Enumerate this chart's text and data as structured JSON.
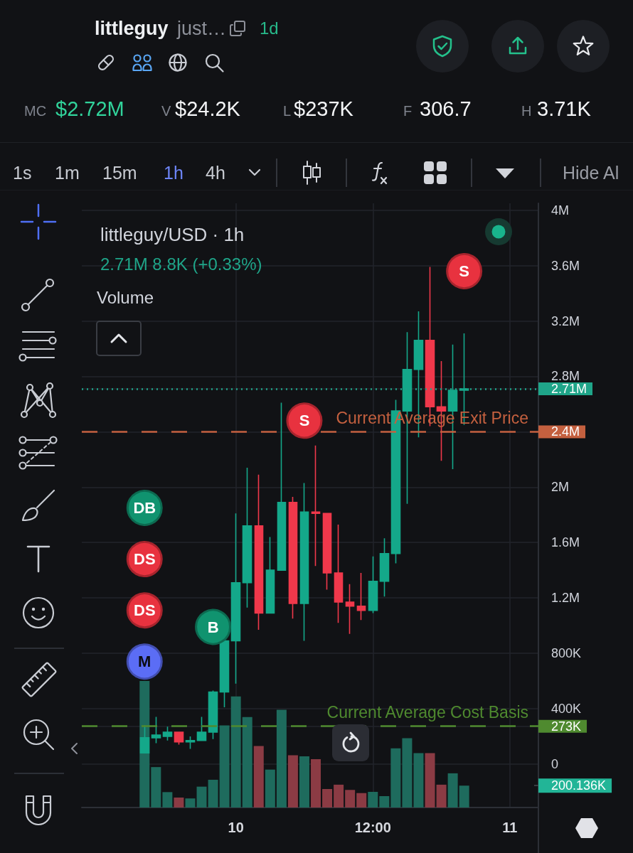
{
  "chart_data": {
    "type": "candlestick",
    "title": "littleguy/USD · 1h",
    "subtitle": "2.71M 8.8K (+0.33%)",
    "categories": [
      null,
      null,
      null,
      null,
      null,
      null,
      null,
      null,
      null,
      null,
      null,
      null,
      null,
      "10",
      null,
      null,
      null,
      null,
      null,
      null,
      null,
      null,
      null,
      null,
      null,
      "12:00",
      null,
      null,
      null,
      null,
      null,
      null,
      null,
      null,
      null,
      null,
      null,
      "11",
      null,
      null
    ],
    "ohlc": [
      null,
      null,
      null,
      null,
      null,
      [
        80000,
        280000,
        80000,
        190000
      ],
      [
        190000,
        340000,
        150000,
        210000
      ],
      [
        200000,
        270000,
        170000,
        230000
      ],
      [
        230000,
        230000,
        140000,
        160000
      ],
      [
        160000,
        200000,
        110000,
        170000
      ],
      [
        170000,
        340000,
        170000,
        230000
      ],
      [
        230000,
        530000,
        180000,
        520000
      ],
      [
        520000,
        890000,
        410000,
        890000
      ],
      [
        890000,
        1810000,
        580000,
        1310000
      ],
      [
        1310000,
        2140000,
        1130000,
        1720000
      ],
      [
        1720000,
        2090000,
        970000,
        1090000
      ],
      [
        1090000,
        1640000,
        1090000,
        1400000
      ],
      [
        1400000,
        2610000,
        1400000,
        1890000
      ],
      [
        1890000,
        1930000,
        1050000,
        1160000
      ],
      [
        1160000,
        2030000,
        890000,
        1820000
      ],
      [
        1820000,
        2300000,
        1430000,
        1810000
      ],
      [
        1810000,
        1810000,
        1260000,
        1380000
      ],
      [
        1380000,
        1730000,
        1020000,
        1170000
      ],
      [
        1170000,
        1300000,
        940000,
        1140000
      ],
      [
        1140000,
        1380000,
        1040000,
        1110000
      ],
      [
        1110000,
        1500000,
        1090000,
        1320000
      ],
      [
        1320000,
        1630000,
        1210000,
        1520000
      ],
      [
        1520000,
        2630000,
        1450000,
        2550000
      ],
      [
        2550000,
        3120000,
        1880000,
        2850000
      ],
      [
        2850000,
        3270000,
        2360000,
        3060000
      ],
      [
        3060000,
        3590000,
        2440000,
        2580000
      ],
      [
        2580000,
        2910000,
        2190000,
        2550000
      ],
      [
        2550000,
        3030000,
        2130000,
        2700000
      ],
      [
        2700000,
        3110000,
        2450000,
        2710000
      ],
      null,
      null,
      null,
      null,
      null,
      null
    ],
    "colors": [
      null,
      null,
      null,
      null,
      null,
      "#14a88a",
      "#14a88a",
      "#14a88a",
      "#f0384b",
      "#14a88a",
      "#14a88a",
      "#14a88a",
      "#14a88a",
      "#14a88a",
      "#14a88a",
      "#f0384b",
      "#14a88a",
      "#14a88a",
      "#f0384b",
      "#14a88a",
      "#f0384b",
      "#f0384b",
      "#f0384b",
      "#f0384b",
      "#f0384b",
      "#14a88a",
      "#14a88a",
      "#14a88a",
      "#14a88a",
      "#14a88a",
      "#f0384b",
      "#f0384b",
      "#14a88a",
      "#14a88a",
      null,
      null,
      null,
      null,
      null,
      null
    ],
    "series": [
      {
        "type": "bar",
        "axis": "y2",
        "values": [
          null,
          null,
          null,
          null,
          null,
          1158000,
          370000,
          141000,
          91000,
          83000,
          191000,
          254000,
          752000,
          1017000,
          828000,
          563000,
          347000,
          895000,
          478000,
          469000,
          443000,
          169000,
          209000,
          161000,
          132000,
          143000,
          104000,
          541000,
          634000,
          497000,
          497000,
          209000,
          313000,
          200136,
          null,
          null,
          null,
          null,
          null,
          null
        ],
        "colors": [
          null,
          null,
          null,
          null,
          null,
          "#1e6b5d",
          "#1e6b5d",
          "#1e6b5d",
          "#8b3b44",
          "#1e6b5d",
          "#1e6b5d",
          "#1e6b5d",
          "#1e6b5d",
          "#1e6b5d",
          "#1e6b5d",
          "#8b3b44",
          "#1e6b5d",
          "#1e6b5d",
          "#8b3b44",
          "#1e6b5d",
          "#8b3b44",
          "#8b3b44",
          "#8b3b44",
          "#8b3b44",
          "#8b3b44",
          "#1e6b5d",
          "#1e6b5d",
          "#1e6b5d",
          "#1e6b5d",
          "#1e6b5d",
          "#8b3b44",
          "#8b3b44",
          "#1e6b5d",
          "#1e6b5d",
          null,
          null,
          null,
          null,
          null,
          null
        ]
      },
      {
        "type": "scatter",
        "color": "#10936f",
        "values": [
          null,
          null,
          null,
          null,
          null,
          1850000,
          null,
          null,
          null,
          null,
          null,
          990000,
          null,
          null,
          null,
          null,
          null,
          null,
          null,
          null,
          null,
          null,
          null,
          null,
          null,
          null,
          null,
          null,
          null,
          null,
          null,
          null,
          null,
          null,
          null,
          null,
          null,
          null,
          null,
          null
        ],
        "value_labels": [
          null,
          null,
          null,
          null,
          null,
          "DB",
          null,
          null,
          null,
          null,
          null,
          "B",
          null,
          null,
          null,
          null,
          null,
          null,
          null,
          null,
          null,
          null,
          null,
          null,
          null,
          null,
          null,
          null,
          null,
          null,
          null,
          null,
          null,
          null,
          null,
          null,
          null,
          null,
          null,
          null
        ]
      },
      {
        "type": "scatter",
        "color": "#e8323f",
        "values": [
          null,
          null,
          null,
          null,
          null,
          1480000,
          null,
          null,
          null,
          null,
          null,
          null,
          null,
          null,
          null,
          null,
          null,
          null,
          null,
          2480000,
          null,
          null,
          null,
          null,
          null,
          null,
          null,
          null,
          null,
          null,
          null,
          null,
          null,
          3560000,
          null,
          null,
          null,
          null,
          null,
          null
        ],
        "value_labels": [
          null,
          null,
          null,
          null,
          null,
          "DS",
          null,
          null,
          null,
          null,
          null,
          null,
          null,
          null,
          null,
          null,
          null,
          null,
          null,
          "S",
          null,
          null,
          null,
          null,
          null,
          null,
          null,
          null,
          null,
          null,
          null,
          null,
          null,
          "S",
          null,
          null,
          null,
          null,
          null,
          null
        ]
      },
      {
        "type": "scatter",
        "color": "#e8323f",
        "values": [
          null,
          null,
          null,
          null,
          null,
          1110000,
          null,
          null,
          null,
          null,
          null,
          null,
          null,
          null,
          null,
          null,
          null,
          null,
          null,
          null,
          null,
          null,
          null,
          null,
          null,
          null,
          null,
          null,
          null,
          null,
          null,
          null,
          null,
          null,
          null,
          null,
          null,
          null,
          null,
          null
        ],
        "value_labels": [
          null,
          null,
          null,
          null,
          null,
          "DS",
          null,
          null,
          null,
          null,
          null,
          null,
          null,
          null,
          null,
          null,
          null,
          null,
          null,
          null,
          null,
          null,
          null,
          null,
          null,
          null,
          null,
          null,
          null,
          null,
          null,
          null,
          null,
          null,
          null,
          null,
          null,
          null,
          null,
          null
        ]
      },
      {
        "type": "scatter",
        "color": "#5b6df5",
        "values": [
          null,
          null,
          null,
          null,
          null,
          740000,
          null,
          null,
          null,
          null,
          null,
          null,
          null,
          null,
          null,
          null,
          null,
          null,
          null,
          null,
          null,
          null,
          null,
          null,
          null,
          null,
          null,
          null,
          null,
          null,
          null,
          null,
          null,
          null,
          null,
          null,
          null,
          null,
          null,
          null
        ],
        "value_labels": [
          null,
          null,
          null,
          null,
          null,
          "M",
          null,
          null,
          null,
          null,
          null,
          null,
          null,
          null,
          null,
          null,
          null,
          null,
          null,
          null,
          null,
          null,
          null,
          null,
          null,
          null,
          null,
          null,
          null,
          null,
          null,
          null,
          null,
          null,
          null,
          null,
          null,
          null,
          null,
          null
        ]
      }
    ],
    "marker": "circle",
    "ylim": [
      -314000,
      4050000
    ],
    "yticks": [
      0,
      {
        "value": 273000,
        "label": "273K"
      },
      {
        "value": 400000,
        "label": "400K"
      },
      {
        "value": 800000,
        "label": "800K"
      },
      {
        "value": 1200000,
        "label": "1.2M"
      },
      {
        "value": 1600000,
        "label": "1.6M"
      },
      {
        "value": 2000000,
        "label": "2M"
      },
      {
        "value": 2400000,
        "label": "2.4M"
      },
      {
        "value": 2710000,
        "label": "2.71M"
      },
      {
        "value": 2800000,
        "label": "2.8M"
      },
      {
        "value": 3200000,
        "label": "3.2M"
      },
      {
        "value": 3600000,
        "label": "3.6M"
      },
      {
        "value": 4000000,
        "label": "4M"
      }
    ],
    "y2lim": [
      0,
      5530000
    ],
    "y2ticks": [
      {
        "value": 200136,
        "label": "200.136K"
      }
    ],
    "ref_lines": [
      {
        "axis": "y",
        "value": 2710000,
        "label": null,
        "color": "#1fa589",
        "line_style": "dotted"
      },
      {
        "axis": "y",
        "value": 2400000,
        "label": "Current Average Exit Price",
        "color": "#c4603f",
        "line_style": "dashed"
      },
      {
        "axis": "y",
        "value": 273000,
        "label": "Current Average Cost Basis",
        "color": "#4f8a2f",
        "line_style": "dashed"
      }
    ],
    "grid": true,
    "annotations": [
      "littleguy",
      "just…",
      "1d",
      "MC",
      "$2.72M",
      "V",
      "$24.2K",
      "L",
      "$237K",
      "F",
      "306.7",
      "H",
      "3.71K",
      "1s",
      "1m",
      "15m",
      "1h",
      "4h",
      "Hide Al",
      "Volume"
    ]
  }
}
